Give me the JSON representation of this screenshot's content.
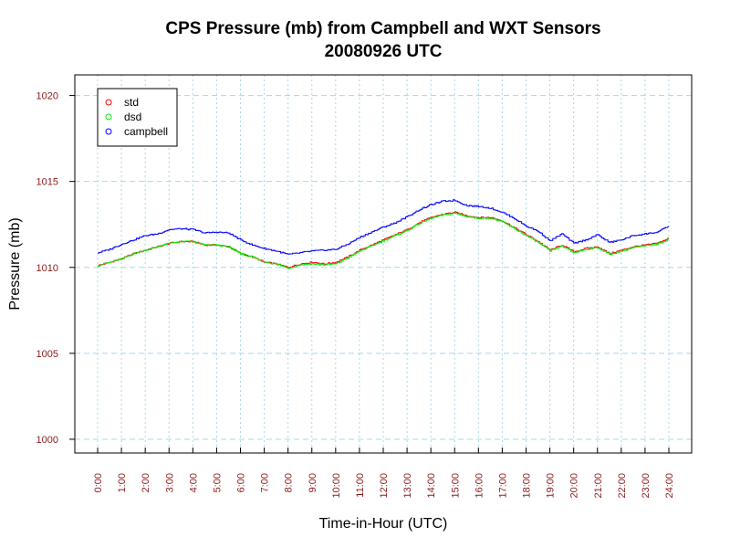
{
  "chart_data": {
    "type": "line",
    "title": "CPS Pressure (mb) from Campbell and WXT Sensors",
    "subtitle": "20080926  UTC",
    "xlabel": "Time-in-Hour (UTC)",
    "ylabel": "Pressure (mb)",
    "xlim": [
      0,
      24
    ],
    "ylim": [
      999.2,
      1021.2
    ],
    "grid": true,
    "legend_position": "top-left",
    "x_ticks": [
      0,
      1,
      2,
      3,
      4,
      5,
      6,
      7,
      8,
      9,
      10,
      11,
      12,
      13,
      14,
      15,
      16,
      17,
      18,
      19,
      20,
      21,
      22,
      23,
      24
    ],
    "x_tick_labels": [
      "0:00",
      "1:00",
      "2:00",
      "3:00",
      "4:00",
      "5:00",
      "6:00",
      "7:00",
      "8:00",
      "9:00",
      "10:00",
      "11:00",
      "12:00",
      "13:00",
      "14:00",
      "15:00",
      "16:00",
      "17:00",
      "18:00",
      "19:00",
      "20:00",
      "21:00",
      "22:00",
      "23:00",
      "24:00"
    ],
    "y_ticks": [
      1000,
      1005,
      1010,
      1015,
      1020
    ],
    "y_tick_labels": [
      "1000",
      "1005",
      "1010",
      "1015",
      "1020"
    ],
    "x": [
      0,
      0.5,
      1,
      1.5,
      2,
      2.5,
      3,
      3.5,
      4,
      4.5,
      5,
      5.5,
      6,
      6.5,
      7,
      7.5,
      8,
      8.5,
      9,
      9.5,
      10,
      10.5,
      11,
      11.5,
      12,
      12.5,
      13,
      13.5,
      14,
      14.5,
      15,
      15.5,
      16,
      16.5,
      17,
      17.5,
      18,
      18.5,
      19,
      19.5,
      20,
      20.5,
      21,
      21.5,
      22,
      22.5,
      23,
      23.5,
      24
    ],
    "series": [
      {
        "name": "std",
        "color": "#ff0000",
        "values": [
          1010.1,
          1010.3,
          1010.5,
          1010.8,
          1011.0,
          1011.2,
          1011.4,
          1011.5,
          1011.5,
          1011.3,
          1011.3,
          1011.2,
          1010.8,
          1010.6,
          1010.3,
          1010.2,
          1010.0,
          1010.2,
          1010.3,
          1010.2,
          1010.3,
          1010.6,
          1011.0,
          1011.3,
          1011.6,
          1011.9,
          1012.2,
          1012.6,
          1012.9,
          1013.1,
          1013.2,
          1013.0,
          1012.9,
          1012.9,
          1012.7,
          1012.3,
          1011.9,
          1011.5,
          1011.0,
          1011.3,
          1010.9,
          1011.1,
          1011.2,
          1010.8,
          1011.0,
          1011.2,
          1011.3,
          1011.4,
          1011.7
        ]
      },
      {
        "name": "dsd",
        "color": "#00ee00",
        "values": [
          1010.1,
          1010.3,
          1010.5,
          1010.8,
          1011.0,
          1011.2,
          1011.4,
          1011.5,
          1011.5,
          1011.3,
          1011.3,
          1011.2,
          1010.8,
          1010.6,
          1010.3,
          1010.2,
          1009.95,
          1010.15,
          1010.2,
          1010.15,
          1010.2,
          1010.55,
          1010.95,
          1011.25,
          1011.55,
          1011.85,
          1012.15,
          1012.55,
          1012.85,
          1013.05,
          1013.15,
          1012.95,
          1012.85,
          1012.85,
          1012.65,
          1012.25,
          1011.85,
          1011.45,
          1010.95,
          1011.25,
          1010.85,
          1011.05,
          1011.15,
          1010.75,
          1010.95,
          1011.15,
          1011.25,
          1011.35,
          1011.65
        ]
      },
      {
        "name": "campbell",
        "color": "#0000ff",
        "values": [
          1010.85,
          1011.05,
          1011.35,
          1011.6,
          1011.85,
          1011.95,
          1012.2,
          1012.25,
          1012.2,
          1012.0,
          1012.05,
          1012.0,
          1011.6,
          1011.3,
          1011.1,
          1010.95,
          1010.75,
          1010.85,
          1010.95,
          1011.0,
          1011.05,
          1011.35,
          1011.75,
          1012.05,
          1012.35,
          1012.6,
          1012.95,
          1013.35,
          1013.65,
          1013.85,
          1013.9,
          1013.6,
          1013.55,
          1013.45,
          1013.2,
          1012.85,
          1012.4,
          1012.1,
          1011.55,
          1011.95,
          1011.4,
          1011.6,
          1011.9,
          1011.45,
          1011.6,
          1011.85,
          1011.95,
          1012.05,
          1012.4
        ]
      }
    ]
  }
}
